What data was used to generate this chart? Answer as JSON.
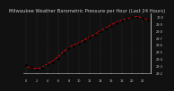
{
  "title": "Milwaukee Weather Barometric Pressure per Hour (Last 24 Hours)",
  "x_values": [
    0,
    1,
    2,
    3,
    4,
    5,
    6,
    7,
    8,
    9,
    10,
    11,
    12,
    13,
    14,
    15,
    16,
    17,
    18,
    19,
    20,
    21,
    22,
    23
  ],
  "y_values": [
    29.31,
    29.28,
    29.25,
    29.27,
    29.32,
    29.35,
    29.4,
    29.48,
    29.55,
    29.58,
    29.62,
    29.65,
    29.7,
    29.74,
    29.79,
    29.83,
    29.87,
    29.91,
    29.94,
    29.97,
    29.99,
    30.0,
    29.98,
    29.95
  ],
  "y_smooth": [
    29.29,
    29.27,
    29.26,
    29.28,
    29.33,
    29.37,
    29.43,
    29.5,
    29.56,
    29.6,
    29.63,
    29.67,
    29.71,
    29.75,
    29.8,
    29.84,
    29.88,
    29.92,
    29.95,
    29.97,
    29.99,
    30.0,
    29.98,
    29.95
  ],
  "ylim": [
    29.2,
    30.05
  ],
  "yticks": [
    29.2,
    29.3,
    29.4,
    29.5,
    29.6,
    29.7,
    29.8,
    29.9,
    30.0
  ],
  "bg_color": "#111111",
  "plot_bg": "#111111",
  "dot_color": "#222222",
  "line_color": "#ff0000",
  "grid_color": "#555555",
  "text_color": "#cccccc",
  "title_fontsize": 3.8,
  "tick_fontsize": 2.5,
  "line_width": 0.6,
  "marker_size": 1.5
}
